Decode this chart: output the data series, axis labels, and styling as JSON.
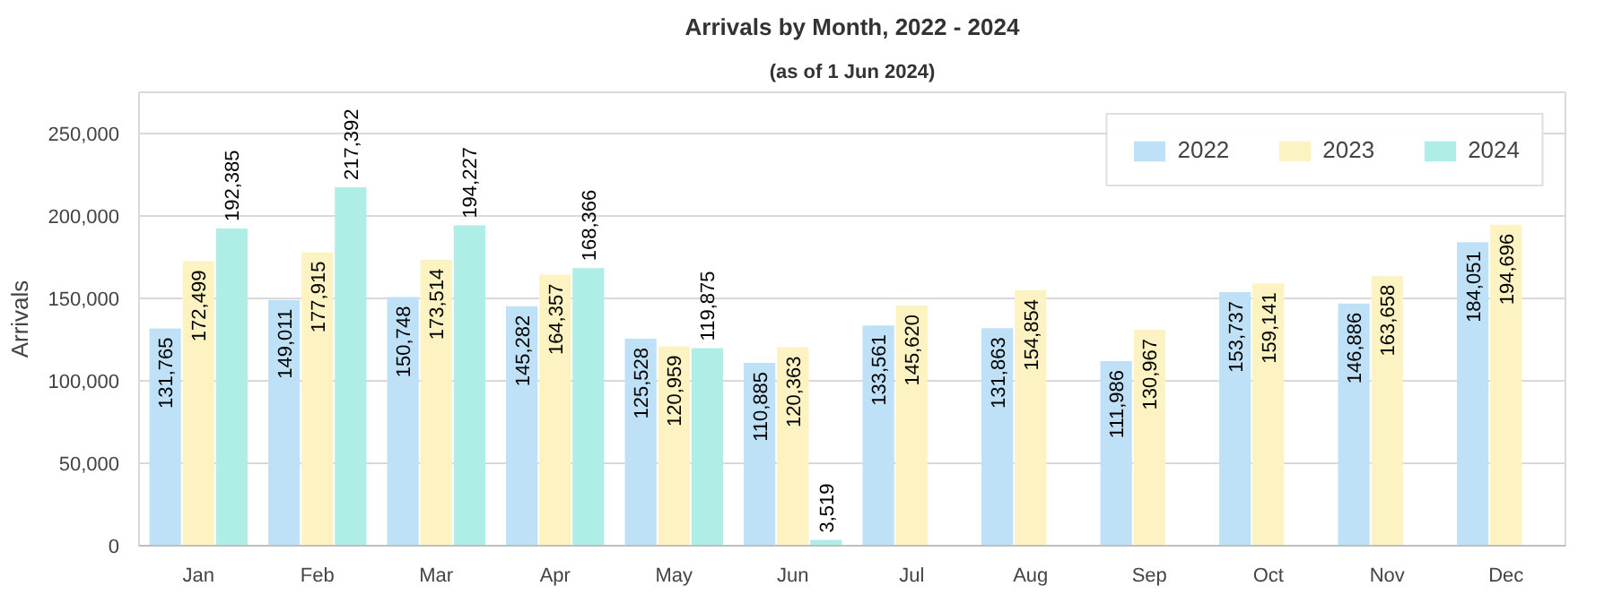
{
  "chart_data": {
    "type": "bar",
    "title": "Arrivals by Month, 2022 - 2024",
    "subtitle": "(as of 1 Jun 2024)",
    "ylabel": "Arrivals",
    "categories": [
      "Jan",
      "Feb",
      "Mar",
      "Apr",
      "May",
      "Jun",
      "Jul",
      "Aug",
      "Sep",
      "Oct",
      "Nov",
      "Dec"
    ],
    "series": [
      {
        "name": "2022",
        "color": "#bfe1f8",
        "values": [
          131765,
          149011,
          150748,
          145282,
          125528,
          110885,
          133561,
          131863,
          111986,
          153737,
          146886,
          184051
        ],
        "value_labels": [
          "131,765",
          "149,011",
          "150,748",
          "145,282",
          "125,528",
          "110,885",
          "133,561",
          "131,863",
          "111,986",
          "153,737",
          "146,886",
          "184,051"
        ]
      },
      {
        "name": "2023",
        "color": "#fdf3c2",
        "values": [
          172499,
          177915,
          173514,
          164357,
          120959,
          120363,
          145620,
          154854,
          130967,
          159141,
          163658,
          194696
        ],
        "value_labels": [
          "172,499",
          "177,915",
          "173,514",
          "164,357",
          "120,959",
          "120,363",
          "145,620",
          "154,854",
          "130,967",
          "159,141",
          "163,658",
          "194,696"
        ]
      },
      {
        "name": "2024",
        "color": "#aeeee6",
        "values": [
          192385,
          217392,
          194227,
          168366,
          119875,
          3519,
          null,
          null,
          null,
          null,
          null,
          null
        ],
        "value_labels": [
          "192,385",
          "217,392",
          "194,227",
          "168,366",
          "119,875",
          "3,519",
          null,
          null,
          null,
          null,
          null,
          null
        ]
      }
    ],
    "ylim": [
      0,
      275000
    ],
    "yticks": [
      {
        "value": 0,
        "label": "0"
      },
      {
        "value": 50000,
        "label": "50,000"
      },
      {
        "value": 100000,
        "label": "100,000"
      },
      {
        "value": 150000,
        "label": "150,000"
      },
      {
        "value": 200000,
        "label": "200,000"
      },
      {
        "value": 250000,
        "label": "250,000"
      }
    ],
    "grid": "y",
    "legend": "top right"
  }
}
